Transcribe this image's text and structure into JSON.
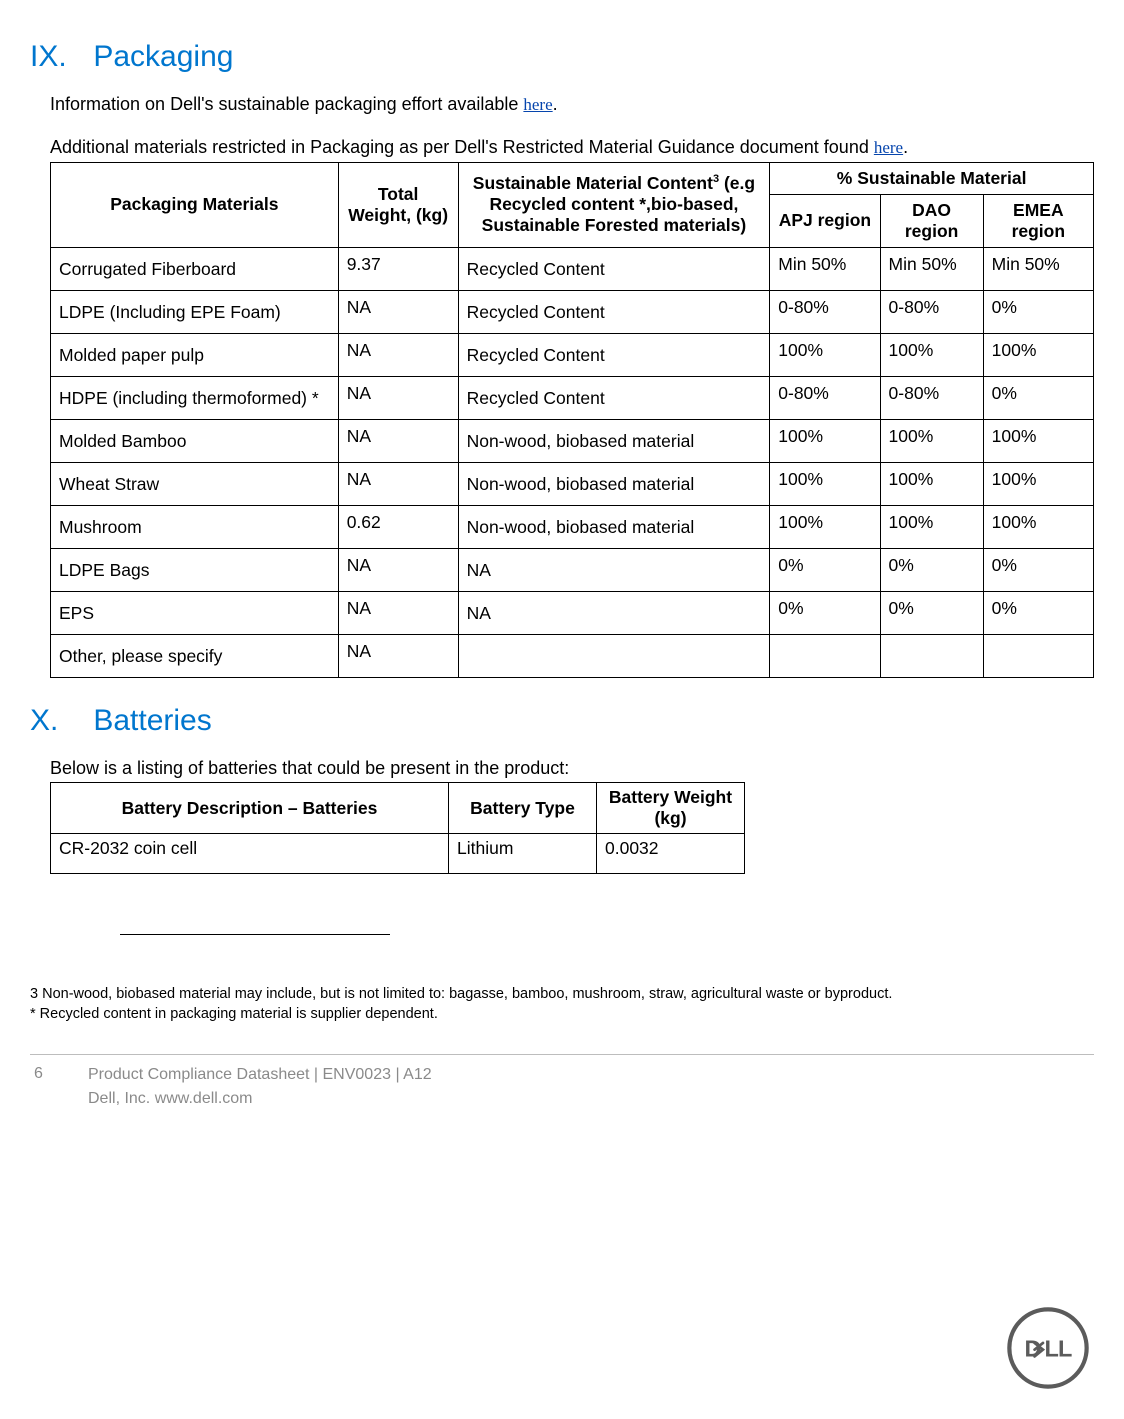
{
  "section_ix": {
    "num": "IX.",
    "title": "Packaging"
  },
  "section_x": {
    "num": "X.",
    "title": "Batteries"
  },
  "intro1_a": "Information on Dell's sustainable packaging effort available ",
  "intro1_link": "here",
  "intro1_b": ".",
  "intro2_a": "Additional materials restricted in Packaging as per Dell's Restricted Material Guidance document found ",
  "intro2_link": "here",
  "intro2_b": ".",
  "pkg_headers": {
    "c1": "Packaging Materials",
    "c2": "Total Weight, (kg)",
    "c3a": "Sustainable Material Content",
    "c3sup": "3",
    "c3b": " (e.g Recycled content *,bio-based, Sustainable Forested materials)",
    "c4": "% Sustainable Material",
    "c5": "APJ region",
    "c6": "DAO region",
    "c7": "EMEA region"
  },
  "pkg_rows": [
    {
      "m": "Corrugated Fiberboard",
      "w": "9.37",
      "s": "Recycled Content",
      "a": "Min 50%",
      "d": "Min 50%",
      "e": "Min 50%"
    },
    {
      "m": "LDPE (Including EPE Foam)",
      "w": "NA",
      "s": "Recycled Content",
      "a": "0-80%",
      "d": "0-80%",
      "e": "0%"
    },
    {
      "m": "Molded paper pulp",
      "w": "NA",
      "s": "Recycled Content",
      "a": "100%",
      "d": "100%",
      "e": "100%"
    },
    {
      "m": "HDPE (including thermoformed) *",
      "w": "NA",
      "s": "Recycled Content",
      "a": "0-80%",
      "d": "0-80%",
      "e": "0%"
    },
    {
      "m": "Molded Bamboo",
      "w": "NA",
      "s": "Non-wood, biobased material",
      "a": "100%",
      "d": "100%",
      "e": "100%"
    },
    {
      "m": "Wheat Straw",
      "w": "NA",
      "s": "Non-wood, biobased material",
      "a": "100%",
      "d": "100%",
      "e": "100%"
    },
    {
      "m": "Mushroom",
      "w": "0.62",
      "s": "Non-wood, biobased material",
      "a": "100%",
      "d": "100%",
      "e": "100%"
    },
    {
      "m": "LDPE Bags",
      "w": "NA",
      "s": "NA",
      "a": "0%",
      "d": "0%",
      "e": "0%"
    },
    {
      "m": "EPS",
      "w": "NA",
      "s": "NA",
      "a": "0%",
      "d": "0%",
      "e": "0%"
    },
    {
      "m": "Other, please specify",
      "w": "NA",
      "s": "",
      "a": "",
      "d": "",
      "e": ""
    }
  ],
  "bat_intro": "Below is a listing of batteries that could be present in the product:",
  "bat_headers": {
    "c1": "Battery Description – Batteries",
    "c2": "Battery Type",
    "c3": "Battery Weight (kg)"
  },
  "bat_rows": [
    {
      "d": "CR-2032 coin cell",
      "t": "Lithium",
      "w": "0.0032"
    }
  ],
  "fn1": "3 Non-wood, biobased material may include, but is not limited to: bagasse, bamboo, mushroom, straw, agricultural waste or byproduct.",
  "fn2": "* Recycled content in packaging material is supplier dependent.",
  "footer": {
    "page": "6",
    "line1": "Product Compliance Datasheet | ENV0023 | A12",
    "line2": "Dell, Inc.  www.dell.com"
  },
  "col_widths": {
    "pkg": [
      "240px",
      "100px",
      "255px",
      "90px",
      "85px",
      "90px"
    ],
    "bat": [
      "398px",
      "148px",
      "148px"
    ]
  },
  "colors": {
    "heading": "#0076ce",
    "link": "#0645ad",
    "footer": "#8a8a8a",
    "logo": "#5b5b5b"
  }
}
